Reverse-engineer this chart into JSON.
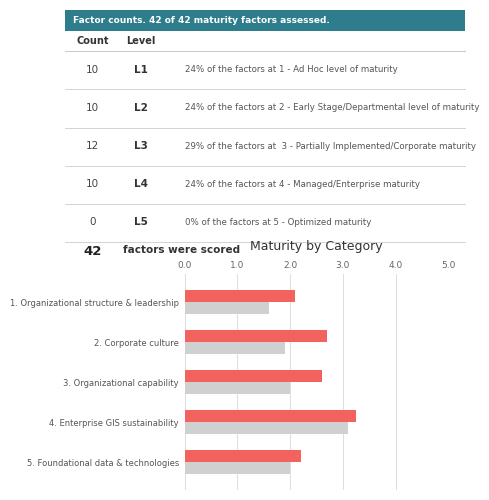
{
  "header_text": "Factor counts. 42 of 42 maturity factors assessed.",
  "header_bg": "#2e7d8c",
  "header_text_color": "#ffffff",
  "table_rows": [
    {
      "count": "10",
      "level": "L1",
      "desc": "24% of the factors at 1 - Ad Hoc level of maturity"
    },
    {
      "count": "10",
      "level": "L2",
      "desc": "24% of the factors at 2 - Early Stage/Departmental level of maturity"
    },
    {
      "count": "12",
      "level": "L3",
      "desc": "29% of the factors at  3 - Partially Implemented/Corporate maturity"
    },
    {
      "count": "10",
      "level": "L4",
      "desc": "24% of the factors at 4 - Managed/Enterprise maturity"
    },
    {
      "count": "0",
      "level": "L5",
      "desc": "0% of the factors at 5 - Optimized maturity"
    }
  ],
  "footer_count": "42",
  "footer_text": "factors were scored",
  "chart_title": "Maturity by Category",
  "categories": [
    "1. Organizational structure & leadership",
    "2. Corporate culture",
    "3. Organizational capability",
    "4. Enterprise GIS sustainability",
    "5. Foundational data & technologies"
  ],
  "red_values": [
    2.1,
    2.7,
    2.6,
    3.25,
    2.2
  ],
  "gray_values": [
    1.6,
    1.9,
    2.0,
    3.1,
    2.0
  ],
  "red_color": "#f2635f",
  "gray_color": "#d0d0d0",
  "xlim": [
    0,
    5.0
  ],
  "xticks": [
    0.0,
    1.0,
    2.0,
    3.0,
    4.0,
    5.0
  ],
  "bg_color": "#ffffff",
  "row_line_color": "#cccccc"
}
